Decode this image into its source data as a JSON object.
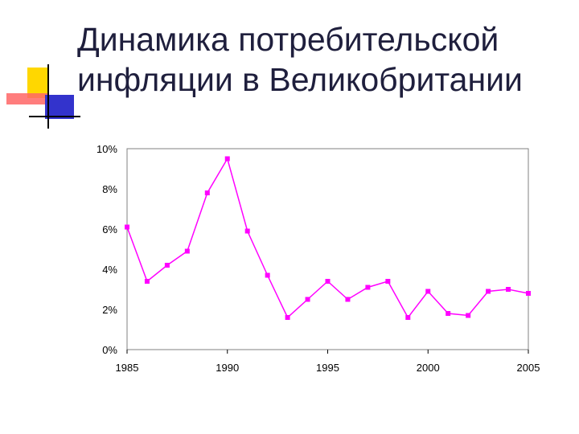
{
  "slide": {
    "title_line1": "Динамика потребительской",
    "title_line2": "инфляции в Великобритании"
  },
  "colors": {
    "series": "#ff00ff",
    "title": "#1f1f3d",
    "deco_yellow": "#ffd700",
    "deco_red": "#ff6666",
    "deco_blue": "#3333cc"
  },
  "icons": [
    "slide-bullet-decoration"
  ],
  "chart_data": {
    "type": "line",
    "title": "",
    "xlabel": "",
    "ylabel": "",
    "xlim": [
      1985,
      2005
    ],
    "ylim": [
      0,
      10
    ],
    "grid": false,
    "legend": "none",
    "x_ticks": [
      1985,
      1990,
      1995,
      2000,
      2005
    ],
    "x_tick_labels": [
      "1985",
      "1990",
      "1995",
      "2000",
      "2005"
    ],
    "y_ticks": [
      0,
      2,
      4,
      6,
      8,
      10
    ],
    "y_tick_labels": [
      "0%",
      "2%",
      "4%",
      "6%",
      "8%",
      "10%"
    ],
    "x": [
      1985,
      1986,
      1987,
      1988,
      1989,
      1990,
      1991,
      1992,
      1993,
      1994,
      1995,
      1996,
      1997,
      1998,
      1999,
      2000,
      2001,
      2002,
      2003,
      2004,
      2005
    ],
    "series": [
      {
        "values": [
          6.1,
          3.4,
          4.2,
          4.9,
          7.8,
          9.5,
          5.9,
          3.7,
          1.6,
          2.5,
          3.4,
          2.5,
          3.1,
          3.4,
          1.6,
          2.9,
          1.8,
          1.7,
          2.9,
          3.0,
          2.8
        ]
      }
    ]
  }
}
